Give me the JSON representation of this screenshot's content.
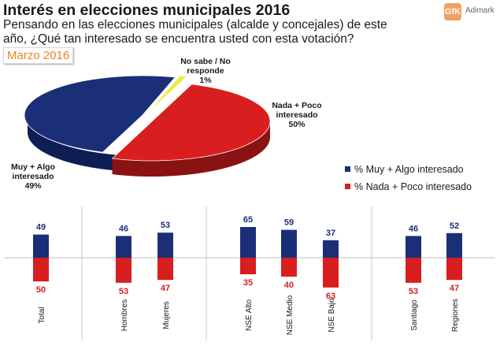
{
  "header": {
    "title": "Interés en elecciones municipales 2016",
    "subtitle": "Pensando en las elecciones municipales (alcalde y concejales) de este año, ¿Qué tan interesado se encuentra usted con esta votación?",
    "date": "Marzo 2016"
  },
  "logo": {
    "mark": "GfK",
    "text": "Adimark"
  },
  "colors": {
    "blue": "#1a2f78",
    "red": "#d81e1e",
    "yellow": "#e9ed3a",
    "date_orange": "#e8841b"
  },
  "chart_data": [
    {
      "type": "pie",
      "title": "",
      "slices": [
        {
          "label": "Muy + Algo interesado",
          "value": 49,
          "value_label": "49%"
        },
        {
          "label": "Nada + Poco interesado",
          "value": 50,
          "value_label": "50%"
        },
        {
          "label": "No sabe / No responde",
          "value": 1,
          "value_label": "1%"
        }
      ]
    },
    {
      "type": "bar",
      "title": "",
      "categories": [
        "Total",
        "Hombres",
        "Mujeres",
        "NSE Alto",
        "NSE Medio",
        "NSE Bajo",
        "Santiago",
        "Regiones"
      ],
      "series": [
        {
          "name": "% Muy + Algo interesado",
          "values": [
            49,
            46,
            53,
            65,
            59,
            37,
            46,
            52
          ]
        },
        {
          "name": "% Nada + Poco interesado",
          "values": [
            50,
            53,
            47,
            35,
            40,
            63,
            53,
            47
          ]
        }
      ],
      "xlabel": "",
      "ylabel": "",
      "ylim": [
        0,
        100
      ]
    }
  ]
}
